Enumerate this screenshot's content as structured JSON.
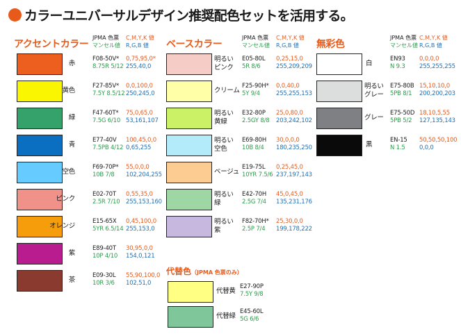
{
  "title": "カラーユニバーサルデザイン推奨配色セットを活用する。",
  "headers": {
    "jpma": "JPMA 色票",
    "munsell": "マンセル値",
    "cmyk": "C,M,Y,K 値",
    "rgb": "R,G,B 値"
  },
  "accent": {
    "title": "アクセントカラー",
    "items": [
      {
        "label": "赤",
        "color": "#ec5f1e",
        "code": "F08-50V*",
        "munsell": "8.75R 5/12",
        "cmyk": "0,75,95,0*",
        "rgb": "255,40,0"
      },
      {
        "label": "黄色",
        "color": "#faf500",
        "code": "F27-85V*",
        "munsell": "7.5Y 8.5/12",
        "cmyk": "0,0,100,0",
        "rgb": "250,245,0"
      },
      {
        "label": "緑",
        "color": "#35a16b",
        "code": "F47-60T*",
        "munsell": "7.5G 6/10",
        "cmyk": "75,0,65,0",
        "rgb": "53,161,107"
      },
      {
        "label": "青",
        "color": "#0a6fc1",
        "code": "E77-40V",
        "munsell": "7.5PB 4/12",
        "cmyk": "100,45,0,0",
        "rgb": "0,65,255"
      },
      {
        "label": "空色",
        "color": "#66ccff",
        "code": "F69-70P*",
        "munsell": "10B 7/8",
        "cmyk": "55,0,0,0",
        "rgb": "102,204,255"
      },
      {
        "label": "ピンク",
        "color": "#f0918a",
        "code": "E02-70T",
        "munsell": "2.5R 7/10",
        "cmyk": "0,55,35,0",
        "rgb": "255,153,160"
      },
      {
        "label": "オレンジ",
        "color": "#f59d0a",
        "code": "E15-65X",
        "munsell": "5YR 6.5/14",
        "cmyk": "0,45,100,0",
        "rgb": "255,153,0"
      },
      {
        "label": "紫",
        "color": "#b81c8e",
        "code": "E89-40T",
        "munsell": "10P 4/10",
        "cmyk": "30,95,0,0",
        "rgb": "154,0,121"
      },
      {
        "label": "茶",
        "color": "#8a3a2e",
        "code": "E09-30L",
        "munsell": "10R 3/6",
        "cmyk": "55,90,100,0",
        "rgb": "102,51,0"
      }
    ]
  },
  "base": {
    "title": "ベースカラー",
    "items": [
      {
        "label": "明るいピンク",
        "color": "#f6cdc6",
        "code": "E05-80L",
        "munsell": "5R 8/6",
        "cmyk": "0,25,15,0",
        "rgb": "255,209,209"
      },
      {
        "label": "クリーム",
        "color": "#ffffa8",
        "code": "F25-90H*",
        "munsell": "5Y 9/4",
        "cmyk": "0,0,40,0",
        "rgb": "255,255,153"
      },
      {
        "label": "明るい黄緑",
        "color": "#cbf266",
        "code": "E32-80P",
        "munsell": "2.5GY 8/8",
        "cmyk": "25,0,80,0",
        "rgb": "203,242,102"
      },
      {
        "label": "明るい空色",
        "color": "#b4ebfa",
        "code": "E69-80H",
        "munsell": "10B 8/4",
        "cmyk": "30,0,0,0",
        "rgb": "180,235,250"
      },
      {
        "label": "ベージュ",
        "color": "#fccc93",
        "code": "E19-75L",
        "munsell": "10YR 7.5/6",
        "cmyk": "0,25,45,0",
        "rgb": "237,197,143"
      },
      {
        "label": "明るい緑",
        "color": "#9ed6a4",
        "code": "E42-70H",
        "munsell": "2.5G 7/4",
        "cmyk": "45,0,45,0",
        "rgb": "135,231,176"
      },
      {
        "label": "明るい紫",
        "color": "#c7b8e0",
        "code": "F82-70H*",
        "munsell": "2.5P 7/4",
        "cmyk": "25,30,0,0",
        "rgb": "199,178,222"
      }
    ]
  },
  "achromatic": {
    "title": "無彩色",
    "items": [
      {
        "label": "白",
        "color": "#ffffff",
        "code": "EN93",
        "munsell": "N 9.3",
        "cmyk": "0,0,0,0",
        "rgb": "255,255,255"
      },
      {
        "label": "明るいグレー",
        "color": "#dcdddd",
        "code": "E75-80B",
        "munsell": "5PB 8/1",
        "cmyk": "15,10,10,0",
        "rgb": "200,200,203"
      },
      {
        "label": "グレー",
        "color": "#7f8083",
        "code": "E75-50D",
        "munsell": "5PB 5/2",
        "cmyk": "18,10,5,55",
        "rgb": "127,135,143"
      },
      {
        "label": "黒",
        "color": "#0a0a0a",
        "code": "EN-15",
        "munsell": "N 1.5",
        "cmyk": "50,50,50,100",
        "rgb": "0,0,0"
      }
    ]
  },
  "substitute": {
    "title": "代替色",
    "note": "（JPMA 色票のみ）",
    "items": [
      {
        "label": "代替黄",
        "color": "#ffff84",
        "code": "E27-90P",
        "munsell": "7.5Y 9/8"
      },
      {
        "label": "代替緑",
        "color": "#7fc79b",
        "code": "E45-60L",
        "munsell": "5G 6/6"
      }
    ]
  }
}
